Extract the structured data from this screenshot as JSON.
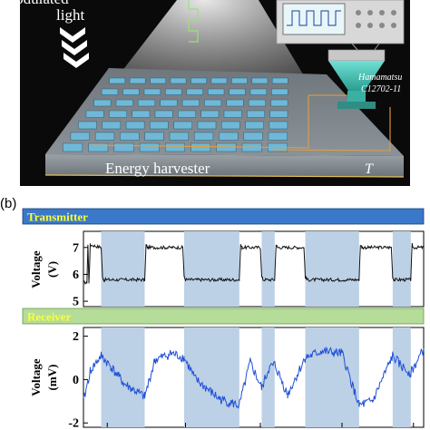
{
  "panel_a": {
    "modulated_light_line1": "Modulated",
    "modulated_light_line2": "light",
    "detector_line1": "Hamamatsu",
    "detector_line2": "C12702-11",
    "device_label": "Energy harvester",
    "temperature_symbol": "T"
  },
  "panel_b": {
    "label": "(b)",
    "transmitter_header": "Transmitter",
    "receiver_header": "Receiver",
    "colors": {
      "transmitter_bar": "#3a78c9",
      "receiver_bar": "#b5dc98",
      "header_text": "#ffff33",
      "shade": "#bcd0e6",
      "tx_trace": "#111111",
      "rx_trace": "#1e4fd6"
    }
  },
  "chart_data": [
    {
      "type": "line",
      "title": "Transmitter",
      "ylabel_line1": "Voltage",
      "ylabel_line2": "(V)",
      "ylim": [
        4.8,
        7.6
      ],
      "yticks": [
        "7",
        "6",
        "5"
      ],
      "series": [
        {
          "x": [
            0.0,
            0.01,
            0.013,
            0.016,
            0.02,
            0.052,
            0.056,
            0.06,
            0.18,
            0.184,
            0.188,
            0.292,
            0.296,
            0.3,
            0.458,
            0.462,
            0.466,
            0.52,
            0.524,
            0.528,
            0.562,
            0.566,
            0.57,
            0.648,
            0.652,
            0.656,
            0.81,
            0.814,
            0.818,
            0.905,
            0.909,
            0.913,
            0.962,
            0.966,
            0.97,
            1.0
          ],
          "y": [
            5.7,
            5.7,
            7.1,
            5.7,
            7.1,
            7.0,
            5.9,
            5.8,
            5.8,
            7.1,
            7.0,
            7.0,
            5.9,
            5.8,
            5.8,
            7.1,
            7.0,
            7.0,
            5.9,
            5.8,
            5.8,
            7.1,
            7.0,
            7.0,
            5.9,
            5.8,
            5.8,
            7.1,
            7.0,
            7.0,
            5.9,
            5.8,
            5.8,
            7.1,
            7.0,
            7.0
          ]
        }
      ],
      "shaded_spans": [
        [
          0.052,
          0.18
        ],
        [
          0.296,
          0.458
        ],
        [
          0.524,
          0.562
        ],
        [
          0.652,
          0.81
        ],
        [
          0.909,
          0.962
        ]
      ]
    },
    {
      "type": "line",
      "title": "Receiver",
      "ylabel_line1": "Voltage",
      "ylabel_line2": "(mV)",
      "ylim": [
        -2.2,
        2.4
      ],
      "yticks": [
        "2",
        "0",
        "-2"
      ],
      "series": [
        {
          "x": [
            0.0,
            0.02,
            0.052,
            0.08,
            0.12,
            0.18,
            0.21,
            0.26,
            0.296,
            0.33,
            0.4,
            0.458,
            0.49,
            0.524,
            0.545,
            0.562,
            0.6,
            0.652,
            0.7,
            0.76,
            0.81,
            0.85,
            0.909,
            0.935,
            0.962,
            1.0
          ],
          "y": [
            -1.0,
            0.4,
            1.1,
            0.6,
            -0.2,
            -0.8,
            0.9,
            1.2,
            1.0,
            0.0,
            -0.9,
            -1.2,
            0.8,
            -0.4,
            0.5,
            0.7,
            -0.7,
            1.0,
            1.3,
            1.2,
            -1.2,
            -1.0,
            1.1,
            0.6,
            0.3,
            1.4
          ]
        }
      ],
      "shaded_spans": [
        [
          0.052,
          0.18
        ],
        [
          0.296,
          0.458
        ],
        [
          0.524,
          0.562
        ],
        [
          0.652,
          0.81
        ],
        [
          0.909,
          0.962
        ]
      ]
    }
  ]
}
